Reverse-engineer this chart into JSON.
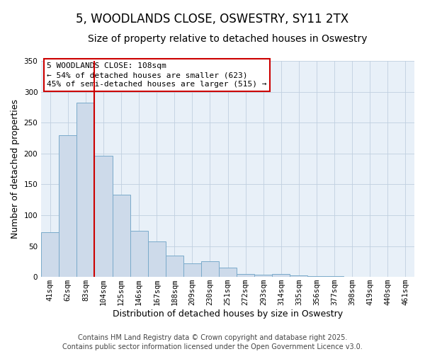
{
  "title": "5, WOODLANDS CLOSE, OSWESTRY, SY11 2TX",
  "subtitle": "Size of property relative to detached houses in Oswestry",
  "xlabel": "Distribution of detached houses by size in Oswestry",
  "ylabel": "Number of detached properties",
  "all_categories": [
    "41sqm",
    "62sqm",
    "83sqm",
    "104sqm",
    "125sqm",
    "146sqm",
    "167sqm",
    "188sqm",
    "209sqm",
    "230sqm",
    "251sqm",
    "272sqm",
    "293sqm",
    "314sqm",
    "335sqm",
    "356sqm",
    "377sqm",
    "398sqm",
    "419sqm",
    "440sqm",
    "461sqm"
  ],
  "all_values": [
    72,
    230,
    283,
    196,
    133,
    75,
    58,
    35,
    22,
    25,
    15,
    5,
    4,
    5,
    2,
    1,
    1,
    0,
    0,
    0,
    0
  ],
  "bar_color": "#cddaea",
  "bar_edge_color": "#7aaaca",
  "vline_index": 3,
  "vline_color": "#cc0000",
  "ylim": [
    0,
    350
  ],
  "yticks": [
    0,
    50,
    100,
    150,
    200,
    250,
    300,
    350
  ],
  "annotation_title": "5 WOODLANDS CLOSE: 108sqm",
  "annotation_line1": "← 54% of detached houses are smaller (623)",
  "annotation_line2": "45% of semi-detached houses are larger (515) →",
  "annotation_box_color": "#ffffff",
  "annotation_box_edge": "#cc0000",
  "footer1": "Contains HM Land Registry data © Crown copyright and database right 2025.",
  "footer2": "Contains public sector information licensed under the Open Government Licence v3.0.",
  "bg_color": "#ffffff",
  "plot_bg_color": "#e8f0f8",
  "grid_color": "#c0cfe0",
  "title_fontsize": 12,
  "subtitle_fontsize": 10,
  "axis_label_fontsize": 9,
  "tick_fontsize": 7.5,
  "annotation_fontsize": 8,
  "footer_fontsize": 7
}
